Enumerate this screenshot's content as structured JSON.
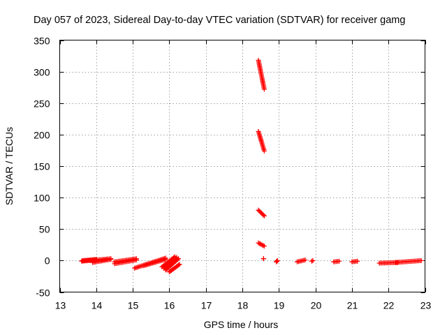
{
  "chart_data": {
    "type": "scatter",
    "title": "Day 057 of 2023, Sidereal Day-to-day VTEC variation (SDTVAR) for receiver gamg",
    "xlabel": "GPS time / hours",
    "ylabel": "SDTVAR / TECUs",
    "xlim": [
      13,
      23
    ],
    "ylim": [
      -50,
      350
    ],
    "xticks": [
      "13",
      "14",
      "15",
      "16",
      "17",
      "18",
      "19",
      "20",
      "21",
      "22",
      "23"
    ],
    "yticks": [
      "-50",
      "0",
      "50",
      "100",
      "150",
      "200",
      "250",
      "300",
      "350"
    ],
    "grid": true,
    "marker": "plus",
    "color": "#ff0000",
    "series": [
      {
        "name": "SDTVAR",
        "segments": [
          {
            "x": [
              13.62,
              14.0
            ],
            "y": [
              0,
              2
            ]
          },
          {
            "x": [
              13.6,
              14.4
            ],
            "y": [
              -1,
              3
            ]
          },
          {
            "x": [
              13.9,
              14.4
            ],
            "y": [
              -3,
              2
            ]
          },
          {
            "x": [
              14.5,
              15.1
            ],
            "y": [
              -2,
              3
            ]
          },
          {
            "x": [
              14.5,
              15.1
            ],
            "y": [
              -5,
              1
            ]
          },
          {
            "x": [
              15.05,
              15.9
            ],
            "y": [
              -12,
              4
            ]
          },
          {
            "x": [
              15.3,
              15.9
            ],
            "y": [
              -8,
              2
            ]
          },
          {
            "x": [
              15.8,
              16.15
            ],
            "y": [
              -10,
              6
            ]
          },
          {
            "x": [
              15.85,
              16.2
            ],
            "y": [
              -12,
              5
            ]
          },
          {
            "x": [
              15.9,
              16.25
            ],
            "y": [
              -15,
              3
            ]
          },
          {
            "x": [
              16.0,
              16.28
            ],
            "y": [
              -18,
              -6
            ]
          },
          {
            "x": [
              18.44,
              18.6
            ],
            "y": [
              318,
              272
            ]
          },
          {
            "x": [
              18.44,
              18.6
            ],
            "y": [
              205,
              174
            ]
          },
          {
            "x": [
              18.44,
              18.6
            ],
            "y": [
              80,
              71
            ]
          },
          {
            "x": [
              18.44,
              18.6
            ],
            "y": [
              28,
              23
            ]
          },
          {
            "x": [
              18.58,
              18.58
            ],
            "y": [
              3,
              3
            ]
          },
          {
            "x": [
              18.93,
              18.96
            ],
            "y": [
              -2,
              0
            ]
          },
          {
            "x": [
              19.5,
              19.72
            ],
            "y": [
              -2,
              1
            ]
          },
          {
            "x": [
              19.9,
              19.93
            ],
            "y": [
              -1,
              0
            ]
          },
          {
            "x": [
              20.5,
              20.65
            ],
            "y": [
              -2,
              -1
            ]
          },
          {
            "x": [
              21.0,
              21.15
            ],
            "y": [
              -2,
              -1
            ]
          },
          {
            "x": [
              21.75,
              22.25
            ],
            "y": [
              -4,
              -3
            ]
          },
          {
            "x": [
              22.2,
              22.9
            ],
            "y": [
              -3,
              0
            ]
          }
        ]
      }
    ]
  }
}
